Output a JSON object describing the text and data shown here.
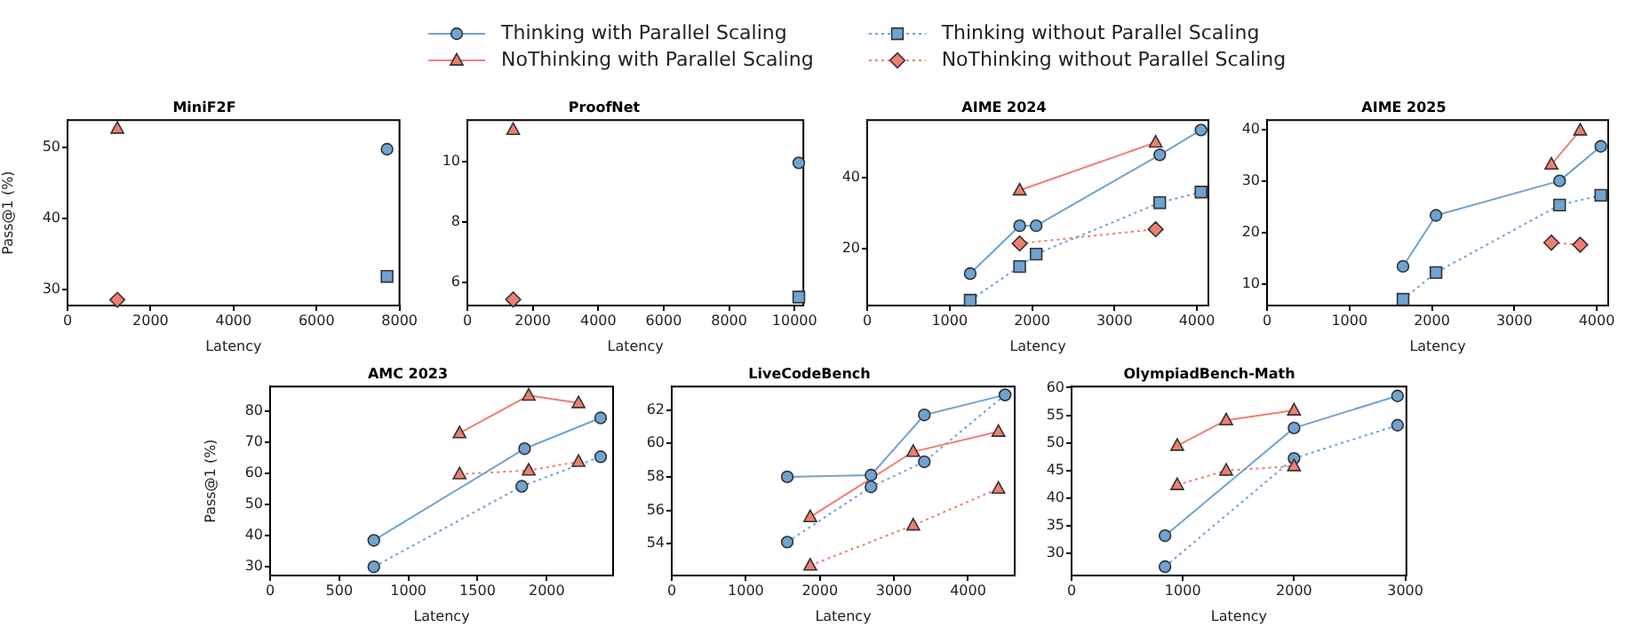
{
  "chart_data": [
    {
      "type": "line",
      "title": "MiniF2F",
      "xlabel": "Latency",
      "ylabel": "Pass@1 (%)",
      "xlim": [
        0,
        8000
      ],
      "xticks": [
        0,
        2000,
        4000,
        6000,
        8000
      ],
      "ylim": [
        27.7,
        53.8
      ],
      "yticks": [
        30,
        40,
        50
      ],
      "grid": false,
      "legend": "top",
      "series": [
        {
          "name": "Thinking with Parallel Scaling",
          "color": "#6fa3d2",
          "marker": "circle",
          "line_style": "solid",
          "x": [
            7700
          ],
          "values": [
            49.7
          ]
        },
        {
          "name": "NoThinking with Parallel Scaling",
          "color": "#f07e6e",
          "marker": "triangle",
          "line_style": "solid",
          "x": [
            1200
          ],
          "values": [
            52.6
          ]
        },
        {
          "name": "Thinking without Parallel Scaling",
          "color": "#6fa3d2",
          "marker": "square",
          "line_style": "dotted",
          "x": [
            7700
          ],
          "values": [
            31.8
          ]
        },
        {
          "name": "NoThinking without Parallel Scaling",
          "color": "#f07e6e",
          "marker": "diamond",
          "line_style": "dotted",
          "x": [
            1200
          ],
          "values": [
            28.5
          ]
        }
      ]
    },
    {
      "type": "line",
      "title": "ProofNet",
      "xlabel": "Latency",
      "xlim": [
        0,
        10270
      ],
      "xticks": [
        0,
        2000,
        4000,
        6000,
        8000,
        10000
      ],
      "ylim": [
        5.23,
        11.38
      ],
      "yticks": [
        6,
        8,
        10
      ],
      "grid": false,
      "series": [
        {
          "color": "#6fa3d2",
          "marker": "circle",
          "line_style": "solid",
          "x": [
            10130
          ],
          "values": [
            9.96
          ]
        },
        {
          "color": "#f07e6e",
          "marker": "triangle",
          "line_style": "solid",
          "x": [
            1400
          ],
          "values": [
            11.06
          ]
        },
        {
          "color": "#6fa3d2",
          "marker": "square",
          "line_style": "dotted",
          "x": [
            10130
          ],
          "values": [
            5.51
          ]
        },
        {
          "color": "#f07e6e",
          "marker": "diamond",
          "line_style": "dotted",
          "x": [
            1400
          ],
          "values": [
            5.43
          ]
        }
      ]
    },
    {
      "type": "line",
      "title": "AIME 2024",
      "xlabel": "Latency",
      "xlim": [
        0,
        4140
      ],
      "xticks": [
        0,
        1000,
        2000,
        3000,
        4000
      ],
      "ylim": [
        4,
        56.3
      ],
      "yticks": [
        20,
        40
      ],
      "grid": false,
      "series": [
        {
          "color": "#6fa3d2",
          "marker": "circle",
          "line_style": "solid",
          "x": [
            1250,
            1850,
            2050,
            3550,
            4050
          ],
          "values": [
            13,
            26.5,
            26.5,
            46.5,
            53.5
          ]
        },
        {
          "color": "#f07e6e",
          "marker": "triangle",
          "line_style": "solid",
          "x": [
            1850,
            3500
          ],
          "values": [
            36.5,
            50
          ]
        },
        {
          "color": "#6fa3d2",
          "marker": "square",
          "line_style": "dotted",
          "x": [
            1250,
            1850,
            2050,
            3550,
            4050
          ],
          "values": [
            5.5,
            15,
            18.5,
            33,
            36
          ]
        },
        {
          "color": "#f07e6e",
          "marker": "diamond",
          "line_style": "dotted",
          "x": [
            1850,
            3500
          ],
          "values": [
            21.5,
            25.5
          ]
        }
      ]
    },
    {
      "type": "line",
      "title": "AIME 2025",
      "xlabel": "Latency",
      "xlim": [
        0,
        4140
      ],
      "xticks": [
        0,
        1000,
        2000,
        3000,
        4000
      ],
      "ylim": [
        5.8,
        41.8
      ],
      "yticks": [
        10,
        20,
        30,
        40
      ],
      "grid": false,
      "series": [
        {
          "color": "#6fa3d2",
          "marker": "circle",
          "line_style": "solid",
          "x": [
            1650,
            2050,
            3550,
            4050
          ],
          "values": [
            13.4,
            23.3,
            30,
            36.7
          ]
        },
        {
          "color": "#f07e6e",
          "marker": "triangle",
          "line_style": "solid",
          "x": [
            3450,
            3800
          ],
          "values": [
            33.2,
            39.8
          ]
        },
        {
          "color": "#6fa3d2",
          "marker": "square",
          "line_style": "dotted",
          "x": [
            1650,
            2050,
            3550,
            4050
          ],
          "values": [
            7,
            12.2,
            25.3,
            27.2
          ]
        },
        {
          "color": "#f07e6e",
          "marker": "diamond",
          "line_style": "dotted",
          "x": [
            3450,
            3800
          ],
          "values": [
            18,
            17.6
          ]
        }
      ]
    },
    {
      "type": "line",
      "title": "AMC 2023",
      "xlabel": "Latency",
      "ylabel": "Pass@1 (%)",
      "xlim": [
        0,
        2480
      ],
      "xticks": [
        0,
        500,
        1000,
        1500,
        2000
      ],
      "ylim": [
        27.2,
        88
      ],
      "yticks": [
        30,
        40,
        50,
        60,
        70,
        80
      ],
      "grid": false,
      "series": [
        {
          "color": "#6fa3d2",
          "marker": "circle",
          "line_style": "solid",
          "x": [
            750,
            1840,
            2390
          ],
          "values": [
            38.5,
            68,
            77.9
          ]
        },
        {
          "color": "#f07e6e",
          "marker": "triangle",
          "line_style": "solid",
          "x": [
            1370,
            1870,
            2230
          ],
          "values": [
            73,
            85.1,
            82.7
          ]
        },
        {
          "color": "#6fa3d2",
          "marker": "circle",
          "line_style": "dotted",
          "x": [
            750,
            1820,
            2390
          ],
          "values": [
            30,
            55.9,
            65.4
          ]
        },
        {
          "color": "#f07e6e",
          "marker": "triangle",
          "line_style": "dotted",
          "x": [
            1370,
            1870,
            2230
          ],
          "values": [
            59.8,
            61,
            63.8
          ]
        }
      ]
    },
    {
      "type": "line",
      "title": "LiveCodeBench",
      "xlabel": "Latency",
      "xlim": [
        0,
        4630
      ],
      "xticks": [
        0,
        1000,
        2000,
        3000,
        4000
      ],
      "ylim": [
        52.1,
        63.4
      ],
      "yticks": [
        54,
        56,
        58,
        60,
        62
      ],
      "grid": false,
      "series": [
        {
          "color": "#6fa3d2",
          "marker": "circle",
          "line_style": "solid",
          "x": [
            1560,
            2690,
            3410,
            4500
          ],
          "values": [
            58,
            58.1,
            61.7,
            62.9
          ]
        },
        {
          "color": "#f07e6e",
          "marker": "triangle",
          "line_style": "solid",
          "x": [
            1870,
            3260,
            4410
          ],
          "values": [
            55.6,
            59.5,
            60.7
          ]
        },
        {
          "color": "#6fa3d2",
          "marker": "circle",
          "line_style": "dotted",
          "x": [
            1560,
            2690,
            3410,
            4500
          ],
          "values": [
            54.1,
            57.4,
            58.9,
            62.9
          ]
        },
        {
          "color": "#f07e6e",
          "marker": "triangle",
          "line_style": "dotted",
          "x": [
            1870,
            3260,
            4410
          ],
          "values": [
            52.7,
            55.1,
            57.3
          ]
        }
      ]
    },
    {
      "type": "line",
      "title": "OlympiadBench-Math",
      "xlabel": "Latency",
      "xlim": [
        0,
        3010
      ],
      "xticks": [
        0,
        1000,
        2000,
        3000
      ],
      "ylim": [
        26,
        60.2
      ],
      "yticks": [
        30,
        35,
        40,
        45,
        50,
        55,
        60
      ],
      "grid": false,
      "series": [
        {
          "color": "#6fa3d2",
          "marker": "circle",
          "line_style": "solid",
          "x": [
            840,
            2000,
            2930
          ],
          "values": [
            33.2,
            52.7,
            58.5
          ]
        },
        {
          "color": "#f07e6e",
          "marker": "triangle",
          "line_style": "solid",
          "x": [
            950,
            1390,
            2000
          ],
          "values": [
            49.5,
            54.1,
            55.9
          ]
        },
        {
          "color": "#6fa3d2",
          "marker": "circle",
          "line_style": "dotted",
          "x": [
            840,
            2000,
            2930
          ],
          "values": [
            27.6,
            47.2,
            53.2
          ]
        },
        {
          "color": "#f07e6e",
          "marker": "triangle",
          "line_style": "dotted",
          "x": [
            950,
            1390,
            2000
          ],
          "values": [
            42.4,
            45,
            45.8
          ]
        }
      ]
    }
  ]
}
